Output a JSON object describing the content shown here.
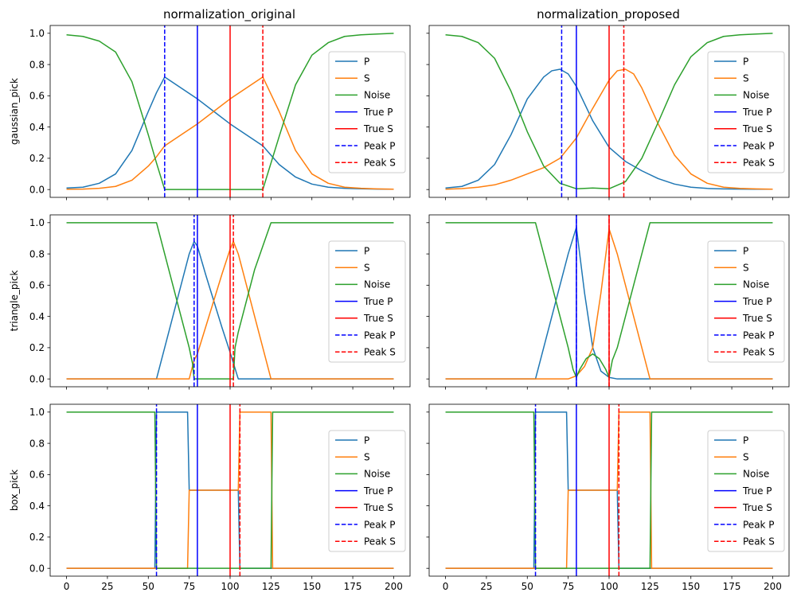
{
  "figure": {
    "col_titles": [
      "normalization_original",
      "normalization_proposed"
    ],
    "row_labels": [
      "gaussian_pick",
      "triangle_pick",
      "box_pick"
    ]
  },
  "colors": {
    "P": "#1f77b4",
    "S": "#ff7f0e",
    "Noise": "#2ca02c",
    "True P": "#0000ff",
    "True S": "#ff0000",
    "Peak P": "#0000ff",
    "Peak S": "#ff0000"
  },
  "chart_data": [
    {
      "type": "line",
      "title": "normalization_original",
      "ylabel": "gaussian_pick",
      "xlim": [
        -10,
        210
      ],
      "ylim": [
        -0.05,
        1.05
      ],
      "xticks": [
        0,
        25,
        50,
        75,
        100,
        125,
        150,
        175,
        200
      ],
      "yticks": [
        0.0,
        0.2,
        0.4,
        0.6,
        0.8,
        1.0
      ],
      "show_xticklabels": false,
      "show_yticklabels": true,
      "legend": "right",
      "series": [
        {
          "name": "P",
          "x": [
            0,
            10,
            20,
            30,
            40,
            50,
            55,
            60,
            70,
            80,
            90,
            100,
            110,
            120,
            130,
            140,
            150,
            160,
            170,
            180,
            190,
            200
          ],
          "y": [
            0.01,
            0.015,
            0.04,
            0.1,
            0.25,
            0.5,
            0.62,
            0.72,
            0.65,
            0.58,
            0.5,
            0.42,
            0.35,
            0.28,
            0.16,
            0.08,
            0.035,
            0.015,
            0.008,
            0.005,
            0.003,
            0.002
          ]
        },
        {
          "name": "S",
          "x": [
            0,
            10,
            20,
            30,
            40,
            50,
            55,
            60,
            70,
            80,
            90,
            100,
            110,
            120,
            130,
            140,
            150,
            160,
            170,
            180,
            190,
            200
          ],
          "y": [
            0.002,
            0.003,
            0.008,
            0.02,
            0.06,
            0.15,
            0.21,
            0.28,
            0.35,
            0.42,
            0.5,
            0.58,
            0.65,
            0.72,
            0.5,
            0.25,
            0.1,
            0.04,
            0.015,
            0.008,
            0.004,
            0.002
          ]
        },
        {
          "name": "Noise",
          "x": [
            0,
            10,
            20,
            30,
            40,
            50,
            55,
            60,
            70,
            80,
            90,
            100,
            110,
            120,
            130,
            140,
            150,
            160,
            170,
            180,
            190,
            200
          ],
          "y": [
            0.99,
            0.98,
            0.95,
            0.88,
            0.69,
            0.35,
            0.17,
            0.0,
            0.0,
            0.0,
            0.0,
            0.0,
            0.0,
            0.0,
            0.34,
            0.67,
            0.86,
            0.94,
            0.98,
            0.99,
            0.995,
            1.0
          ]
        },
        {
          "name": "True P",
          "x": [
            80,
            80
          ],
          "y": [
            -0.05,
            1.05
          ]
        },
        {
          "name": "True S",
          "x": [
            100,
            100
          ],
          "y": [
            -0.05,
            1.05
          ]
        },
        {
          "name": "Peak P",
          "x": [
            60,
            60
          ],
          "y": [
            -0.05,
            1.05
          ],
          "dashed": true
        },
        {
          "name": "Peak S",
          "x": [
            120,
            120
          ],
          "y": [
            -0.05,
            1.05
          ],
          "dashed": true
        }
      ]
    },
    {
      "type": "line",
      "title": "normalization_proposed",
      "ylabel": "",
      "xlim": [
        -10,
        210
      ],
      "ylim": [
        -0.05,
        1.05
      ],
      "xticks": [
        0,
        25,
        50,
        75,
        100,
        125,
        150,
        175,
        200
      ],
      "yticks": [
        0.0,
        0.2,
        0.4,
        0.6,
        0.8,
        1.0
      ],
      "show_xticklabels": false,
      "show_yticklabels": false,
      "legend": "right",
      "series": [
        {
          "name": "P",
          "x": [
            0,
            10,
            20,
            30,
            40,
            50,
            60,
            65,
            70,
            75,
            80,
            85,
            90,
            100,
            110,
            120,
            130,
            140,
            150,
            160,
            170,
            180,
            190,
            200
          ],
          "y": [
            0.01,
            0.02,
            0.06,
            0.16,
            0.35,
            0.58,
            0.72,
            0.76,
            0.77,
            0.74,
            0.66,
            0.55,
            0.44,
            0.27,
            0.18,
            0.12,
            0.07,
            0.035,
            0.015,
            0.007,
            0.004,
            0.003,
            0.002,
            0.002
          ]
        },
        {
          "name": "S",
          "x": [
            0,
            10,
            20,
            30,
            40,
            50,
            60,
            70,
            80,
            90,
            100,
            105,
            110,
            115,
            120,
            130,
            140,
            150,
            160,
            170,
            180,
            190,
            200
          ],
          "y": [
            0.002,
            0.006,
            0.015,
            0.03,
            0.06,
            0.1,
            0.14,
            0.2,
            0.33,
            0.52,
            0.7,
            0.76,
            0.77,
            0.74,
            0.65,
            0.42,
            0.22,
            0.1,
            0.04,
            0.015,
            0.007,
            0.004,
            0.002
          ]
        },
        {
          "name": "Noise",
          "x": [
            0,
            10,
            20,
            30,
            40,
            50,
            60,
            70,
            80,
            90,
            100,
            110,
            120,
            130,
            140,
            150,
            160,
            170,
            180,
            190,
            200
          ],
          "y": [
            0.99,
            0.98,
            0.94,
            0.84,
            0.63,
            0.37,
            0.15,
            0.04,
            0.005,
            0.01,
            0.005,
            0.05,
            0.2,
            0.43,
            0.67,
            0.85,
            0.94,
            0.98,
            0.99,
            0.995,
            1.0
          ]
        },
        {
          "name": "True P",
          "x": [
            80,
            80
          ],
          "y": [
            -0.05,
            1.05
          ]
        },
        {
          "name": "True S",
          "x": [
            100,
            100
          ],
          "y": [
            -0.05,
            1.05
          ]
        },
        {
          "name": "Peak P",
          "x": [
            71,
            71
          ],
          "y": [
            -0.05,
            1.05
          ],
          "dashed": true
        },
        {
          "name": "Peak S",
          "x": [
            109,
            109
          ],
          "y": [
            -0.05,
            1.05
          ],
          "dashed": true
        }
      ]
    },
    {
      "type": "line",
      "title": "",
      "ylabel": "triangle_pick",
      "xlim": [
        -10,
        210
      ],
      "ylim": [
        -0.05,
        1.05
      ],
      "xticks": [
        0,
        25,
        50,
        75,
        100,
        125,
        150,
        175,
        200
      ],
      "yticks": [
        0.0,
        0.2,
        0.4,
        0.6,
        0.8,
        1.0
      ],
      "show_xticklabels": false,
      "show_yticklabels": true,
      "legend": "right",
      "series": [
        {
          "name": "P",
          "x": [
            0,
            55,
            60,
            65,
            70,
            75,
            78,
            80,
            85,
            90,
            95,
            100,
            105,
            200
          ],
          "y": [
            0.0,
            0.0,
            0.2,
            0.4,
            0.6,
            0.8,
            0.88,
            0.85,
            0.67,
            0.5,
            0.33,
            0.17,
            0.0,
            0.0
          ]
        },
        {
          "name": "S",
          "x": [
            0,
            75,
            78,
            80,
            85,
            90,
            95,
            100,
            102,
            105,
            110,
            115,
            120,
            125,
            200
          ],
          "y": [
            0.0,
            0.0,
            0.12,
            0.16,
            0.33,
            0.5,
            0.67,
            0.83,
            0.88,
            0.8,
            0.6,
            0.4,
            0.2,
            0.0,
            0.0
          ]
        },
        {
          "name": "Noise",
          "x": [
            0,
            55,
            60,
            65,
            70,
            75,
            77,
            78,
            102,
            103,
            105,
            110,
            115,
            120,
            125,
            200
          ],
          "y": [
            1.0,
            1.0,
            0.8,
            0.6,
            0.4,
            0.2,
            0.1,
            0.0,
            0.0,
            0.2,
            0.3,
            0.5,
            0.7,
            0.85,
            1.0,
            1.0
          ]
        },
        {
          "name": "True P",
          "x": [
            80,
            80
          ],
          "y": [
            -0.05,
            1.05
          ]
        },
        {
          "name": "True S",
          "x": [
            100,
            100
          ],
          "y": [
            -0.05,
            1.05
          ]
        },
        {
          "name": "Peak P",
          "x": [
            78,
            78
          ],
          "y": [
            -0.05,
            1.05
          ],
          "dashed": true
        },
        {
          "name": "Peak S",
          "x": [
            102,
            102
          ],
          "y": [
            -0.05,
            1.05
          ],
          "dashed": true
        }
      ]
    },
    {
      "type": "line",
      "title": "",
      "ylabel": "",
      "xlim": [
        -10,
        210
      ],
      "ylim": [
        -0.05,
        1.05
      ],
      "xticks": [
        0,
        25,
        50,
        75,
        100,
        125,
        150,
        175,
        200
      ],
      "yticks": [
        0.0,
        0.2,
        0.4,
        0.6,
        0.8,
        1.0
      ],
      "show_xticklabels": false,
      "show_yticklabels": false,
      "legend": "right",
      "series": [
        {
          "name": "P",
          "x": [
            0,
            55,
            60,
            65,
            70,
            75,
            80,
            85,
            90,
            95,
            100,
            105,
            200
          ],
          "y": [
            0.0,
            0.0,
            0.2,
            0.4,
            0.6,
            0.8,
            0.97,
            0.55,
            0.2,
            0.05,
            0.01,
            0.0,
            0.0
          ]
        },
        {
          "name": "S",
          "x": [
            0,
            75,
            80,
            85,
            90,
            95,
            100,
            105,
            110,
            115,
            120,
            125,
            200
          ],
          "y": [
            0.0,
            0.0,
            0.02,
            0.08,
            0.2,
            0.55,
            0.96,
            0.8,
            0.6,
            0.4,
            0.2,
            0.0,
            0.0
          ]
        },
        {
          "name": "Noise",
          "x": [
            0,
            55,
            60,
            65,
            70,
            75,
            78,
            80,
            82,
            86,
            90,
            94,
            98,
            100,
            102,
            105,
            110,
            115,
            120,
            125,
            200
          ],
          "y": [
            1.0,
            1.0,
            0.8,
            0.6,
            0.4,
            0.2,
            0.06,
            0.01,
            0.06,
            0.13,
            0.16,
            0.13,
            0.06,
            0.01,
            0.12,
            0.2,
            0.4,
            0.6,
            0.8,
            1.0,
            1.0
          ]
        },
        {
          "name": "True P",
          "x": [
            80,
            80
          ],
          "y": [
            -0.05,
            1.05
          ]
        },
        {
          "name": "True S",
          "x": [
            100,
            100
          ],
          "y": [
            -0.05,
            1.05
          ]
        },
        {
          "name": "Peak P",
          "x": [
            80,
            80
          ],
          "y": [
            -0.05,
            1.05
          ],
          "dashed": true
        },
        {
          "name": "Peak S",
          "x": [
            100,
            100
          ],
          "y": [
            -0.05,
            1.05
          ],
          "dashed": true
        }
      ]
    },
    {
      "type": "line",
      "title": "",
      "ylabel": "box_pick",
      "xlim": [
        -10,
        210
      ],
      "ylim": [
        -0.05,
        1.05
      ],
      "xticks": [
        0,
        25,
        50,
        75,
        100,
        125,
        150,
        175,
        200
      ],
      "yticks": [
        0.0,
        0.2,
        0.4,
        0.6,
        0.8,
        1.0
      ],
      "show_xticklabels": true,
      "show_yticklabels": true,
      "legend": "right",
      "series": [
        {
          "name": "P",
          "x": [
            0,
            54,
            55,
            74,
            75,
            105,
            106,
            200
          ],
          "y": [
            0.0,
            0.0,
            1.0,
            1.0,
            0.5,
            0.5,
            0.0,
            0.0
          ]
        },
        {
          "name": "S",
          "x": [
            0,
            74,
            75,
            105,
            106,
            125,
            126,
            200
          ],
          "y": [
            0.0,
            0.0,
            0.5,
            0.5,
            1.0,
            1.0,
            0.0,
            0.0
          ]
        },
        {
          "name": "Noise",
          "x": [
            0,
            54,
            55,
            125,
            126,
            200
          ],
          "y": [
            1.0,
            1.0,
            0.0,
            0.0,
            1.0,
            1.0
          ]
        },
        {
          "name": "True P",
          "x": [
            80,
            80
          ],
          "y": [
            -0.05,
            1.05
          ]
        },
        {
          "name": "True S",
          "x": [
            100,
            100
          ],
          "y": [
            -0.05,
            1.05
          ]
        },
        {
          "name": "Peak P",
          "x": [
            55,
            55
          ],
          "y": [
            -0.05,
            1.05
          ],
          "dashed": true
        },
        {
          "name": "Peak S",
          "x": [
            106,
            106
          ],
          "y": [
            -0.05,
            1.05
          ],
          "dashed": true
        }
      ]
    },
    {
      "type": "line",
      "title": "",
      "ylabel": "",
      "xlim": [
        -10,
        210
      ],
      "ylim": [
        -0.05,
        1.05
      ],
      "xticks": [
        0,
        25,
        50,
        75,
        100,
        125,
        150,
        175,
        200
      ],
      "yticks": [
        0.0,
        0.2,
        0.4,
        0.6,
        0.8,
        1.0
      ],
      "show_xticklabels": true,
      "show_yticklabels": false,
      "legend": "right",
      "series": [
        {
          "name": "P",
          "x": [
            0,
            54,
            55,
            74,
            75,
            105,
            106,
            200
          ],
          "y": [
            0.0,
            0.0,
            1.0,
            1.0,
            0.5,
            0.5,
            0.0,
            0.0
          ]
        },
        {
          "name": "S",
          "x": [
            0,
            74,
            75,
            105,
            106,
            125,
            126,
            200
          ],
          "y": [
            0.0,
            0.0,
            0.5,
            0.5,
            1.0,
            1.0,
            0.0,
            0.0
          ]
        },
        {
          "name": "Noise",
          "x": [
            0,
            54,
            55,
            125,
            126,
            200
          ],
          "y": [
            1.0,
            1.0,
            0.0,
            0.0,
            1.0,
            1.0
          ]
        },
        {
          "name": "True P",
          "x": [
            80,
            80
          ],
          "y": [
            -0.05,
            1.05
          ]
        },
        {
          "name": "True S",
          "x": [
            100,
            100
          ],
          "y": [
            -0.05,
            1.05
          ]
        },
        {
          "name": "Peak P",
          "x": [
            55,
            55
          ],
          "y": [
            -0.05,
            1.05
          ],
          "dashed": true
        },
        {
          "name": "Peak S",
          "x": [
            106,
            106
          ],
          "y": [
            -0.05,
            1.05
          ],
          "dashed": true
        }
      ]
    }
  ]
}
